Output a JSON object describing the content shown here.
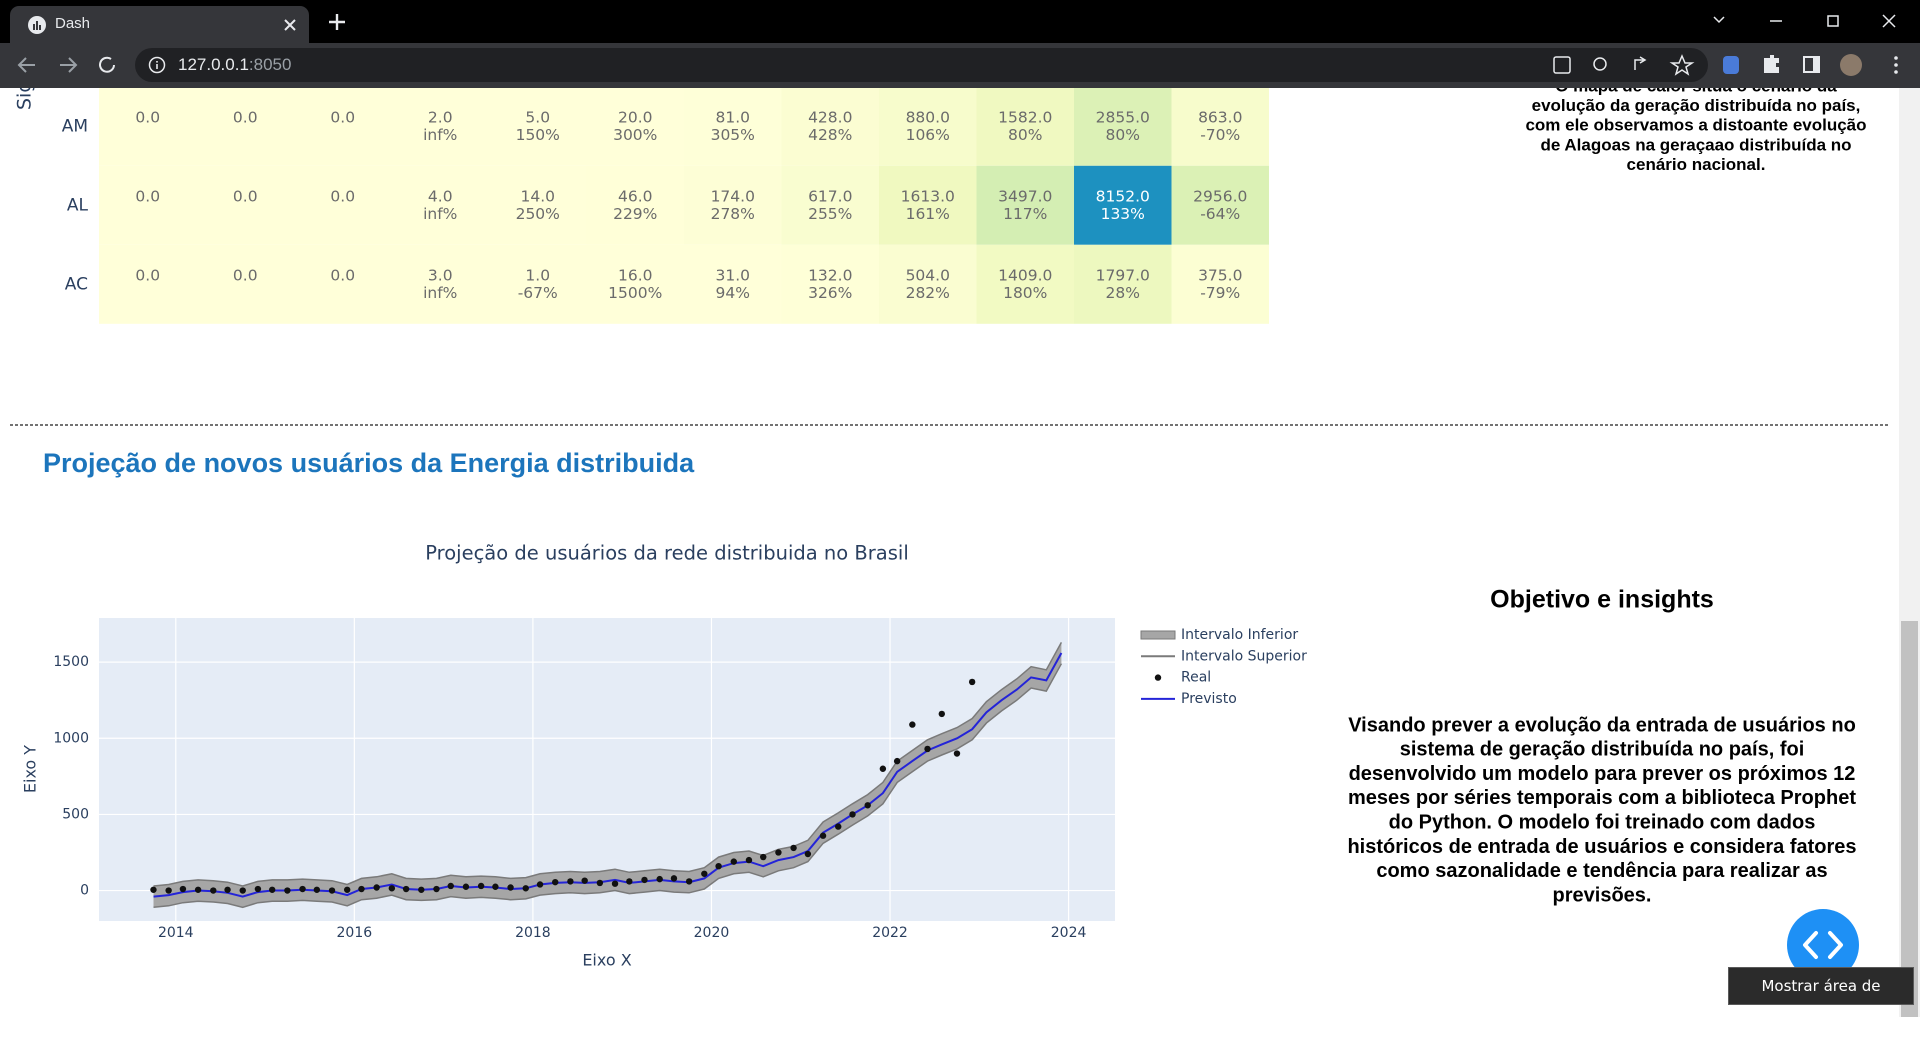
{
  "browser": {
    "tab_title": "Dash",
    "url_host": "127.0.0.1",
    "url_port": ":8050"
  },
  "heatmap": {
    "axis_label": "Sig",
    "rows": [
      "AM",
      "AL",
      "AC"
    ],
    "colorscale": [
      "#ffffd9",
      "#f0f9c0",
      "#d6efb3",
      "#c7e9b4",
      "#a8dcb5",
      "#1d91c0"
    ],
    "cells": [
      [
        {
          "value": 0,
          "label": "0.0"
        },
        {
          "value": 0,
          "label": "0.0"
        },
        {
          "value": 0,
          "label": "0.0"
        },
        {
          "value": 2,
          "label": "2.0",
          "change": "inf%"
        },
        {
          "value": 5,
          "label": "5.0",
          "change": "150%"
        },
        {
          "value": 20,
          "label": "20.0",
          "change": "300%"
        },
        {
          "value": 81,
          "label": "81.0",
          "change": "305%"
        },
        {
          "value": 428,
          "label": "428.0",
          "change": "428%"
        },
        {
          "value": 880,
          "label": "880.0",
          "change": "106%"
        },
        {
          "value": 1582,
          "label": "1582.0",
          "change": "80%"
        },
        {
          "value": 2855,
          "label": "2855.0",
          "change": "80%"
        },
        {
          "value": 863,
          "label": "863.0",
          "change": "-70%"
        }
      ],
      [
        {
          "value": 0,
          "label": "0.0"
        },
        {
          "value": 0,
          "label": "0.0"
        },
        {
          "value": 0,
          "label": "0.0"
        },
        {
          "value": 4,
          "label": "4.0",
          "change": "inf%"
        },
        {
          "value": 14,
          "label": "14.0",
          "change": "250%"
        },
        {
          "value": 46,
          "label": "46.0",
          "change": "229%"
        },
        {
          "value": 174,
          "label": "174.0",
          "change": "278%"
        },
        {
          "value": 617,
          "label": "617.0",
          "change": "255%"
        },
        {
          "value": 1613,
          "label": "1613.0",
          "change": "161%"
        },
        {
          "value": 3497,
          "label": "3497.0",
          "change": "117%"
        },
        {
          "value": 8152,
          "label": "8152.0",
          "change": "133%"
        },
        {
          "value": 2956,
          "label": "2956.0",
          "change": "-64%"
        }
      ],
      [
        {
          "value": 0,
          "label": "0.0"
        },
        {
          "value": 0,
          "label": "0.0"
        },
        {
          "value": 0,
          "label": "0.0"
        },
        {
          "value": 3,
          "label": "3.0",
          "change": "inf%"
        },
        {
          "value": 1,
          "label": "1.0",
          "change": "-67%"
        },
        {
          "value": 16,
          "label": "16.0",
          "change": "1500%"
        },
        {
          "value": 31,
          "label": "31.0",
          "change": "94%"
        },
        {
          "value": 132,
          "label": "132.0",
          "change": "326%"
        },
        {
          "value": 504,
          "label": "504.0",
          "change": "282%"
        },
        {
          "value": 1409,
          "label": "1409.0",
          "change": "180%"
        },
        {
          "value": 1797,
          "label": "1797.0",
          "change": "28%"
        },
        {
          "value": 375,
          "label": "375.0",
          "change": "-79%"
        }
      ]
    ]
  },
  "map_insight": {
    "lines": [
      "O mapa de calor situa o cenário da",
      "evolução da geração distribuída no país,",
      "com ele observamos a distoante evolução",
      "de Alagoas na geraçaao distribuída no",
      "cenário nacional."
    ]
  },
  "section_title": "Projeção de novos usuários da Energia distribuida",
  "chart_data": {
    "type": "line",
    "title": "Projeção de usuários da rede distribuida no Brasil",
    "x_label": "Eixo X",
    "y_label": "Eixo Y",
    "x": [
      2013.75,
      2013.92,
      2014.08,
      2014.25,
      2014.42,
      2014.58,
      2014.75,
      2014.92,
      2015.08,
      2015.25,
      2015.42,
      2015.58,
      2015.75,
      2015.92,
      2016.08,
      2016.25,
      2016.42,
      2016.58,
      2016.75,
      2016.92,
      2017.08,
      2017.25,
      2017.42,
      2017.58,
      2017.75,
      2017.92,
      2018.08,
      2018.25,
      2018.42,
      2018.58,
      2018.75,
      2018.92,
      2019.08,
      2019.25,
      2019.42,
      2019.58,
      2019.75,
      2019.92,
      2020.08,
      2020.25,
      2020.42,
      2020.58,
      2020.75,
      2020.92,
      2021.08,
      2021.25,
      2021.42,
      2021.58,
      2021.75,
      2021.92,
      2022.08,
      2022.25,
      2022.42,
      2022.58,
      2022.75,
      2022.92,
      2023.08,
      2023.25,
      2023.42,
      2023.58,
      2023.75,
      2023.92
    ],
    "series": [
      {
        "name": "Intervalo Inferior",
        "color": "#7a7a7a",
        "fill": "#a6a6a6",
        "mode": "lines",
        "values": [
          -110,
          -100,
          -80,
          -70,
          -75,
          -85,
          -110,
          -80,
          -70,
          -70,
          -65,
          -70,
          -75,
          -100,
          -60,
          -50,
          -30,
          -60,
          -65,
          -60,
          -40,
          -50,
          -45,
          -50,
          -60,
          -55,
          -30,
          -20,
          -15,
          -20,
          -15,
          0,
          -20,
          -10,
          0,
          -10,
          -15,
          10,
          80,
          110,
          120,
          90,
          130,
          150,
          190,
          310,
          370,
          430,
          490,
          570,
          710,
          780,
          850,
          890,
          930,
          990,
          1100,
          1180,
          1250,
          1330,
          1310,
          1490
        ]
      },
      {
        "name": "Intervalo Superior",
        "color": "#7a7a7a",
        "mode": "lines",
        "values": [
          30,
          40,
          60,
          70,
          65,
          55,
          30,
          60,
          70,
          70,
          75,
          70,
          65,
          40,
          80,
          90,
          110,
          80,
          75,
          80,
          100,
          90,
          95,
          90,
          80,
          85,
          110,
          120,
          125,
          120,
          125,
          140,
          120,
          130,
          140,
          130,
          125,
          150,
          220,
          250,
          260,
          230,
          270,
          290,
          330,
          450,
          510,
          570,
          630,
          710,
          850,
          920,
          990,
          1030,
          1070,
          1130,
          1240,
          1320,
          1390,
          1470,
          1450,
          1630
        ]
      },
      {
        "name": "Real",
        "color": "#111111",
        "mode": "markers",
        "values": [
          5,
          0,
          10,
          5,
          0,
          5,
          0,
          10,
          5,
          0,
          10,
          5,
          0,
          5,
          10,
          20,
          15,
          10,
          5,
          10,
          30,
          25,
          30,
          25,
          20,
          15,
          40,
          55,
          60,
          65,
          50,
          45,
          60,
          70,
          75,
          80,
          60,
          110,
          160,
          190,
          200,
          220,
          250,
          280,
          240,
          360,
          420,
          500,
          560,
          800,
          850,
          1090,
          930,
          1160,
          900,
          1370,
          null,
          null,
          null,
          null,
          null,
          null
        ]
      },
      {
        "name": "Previsto",
        "color": "#2424d8",
        "mode": "lines",
        "values": [
          -40,
          -30,
          -10,
          0,
          -5,
          -15,
          -40,
          -10,
          0,
          0,
          5,
          0,
          -5,
          -30,
          10,
          20,
          40,
          10,
          5,
          10,
          30,
          20,
          25,
          20,
          10,
          15,
          40,
          50,
          55,
          50,
          55,
          70,
          50,
          60,
          70,
          60,
          55,
          80,
          150,
          180,
          190,
          160,
          200,
          220,
          260,
          380,
          440,
          500,
          560,
          640,
          780,
          850,
          920,
          960,
          1000,
          1060,
          1170,
          1250,
          1320,
          1400,
          1380,
          1560
        ]
      }
    ],
    "xlim": [
      2013.14,
      2024.52
    ],
    "xticks": [
      2014,
      2016,
      2018,
      2020,
      2022,
      2024
    ],
    "ylim": [
      -200,
      1790
    ],
    "yticks": [
      0,
      500,
      1000,
      1500
    ],
    "grid": true,
    "legend": "right"
  },
  "insights": {
    "title": "Objetivo e insights",
    "lines": [
      "Visando prever a evolução da entrada de usuários no",
      "sistema de geração distribuída no país, foi",
      "desenvolvido um modelo para prever os próximos 12",
      "meses por séries temporais com a biblioteca Prophet",
      "do Python. O modelo foi treinado com dados",
      "históricos de entrada de usuários e considera fatores",
      "como sazonalidade e tendência para realizar as",
      "previsões."
    ]
  },
  "tooltip": "Mostrar área de trabalho"
}
